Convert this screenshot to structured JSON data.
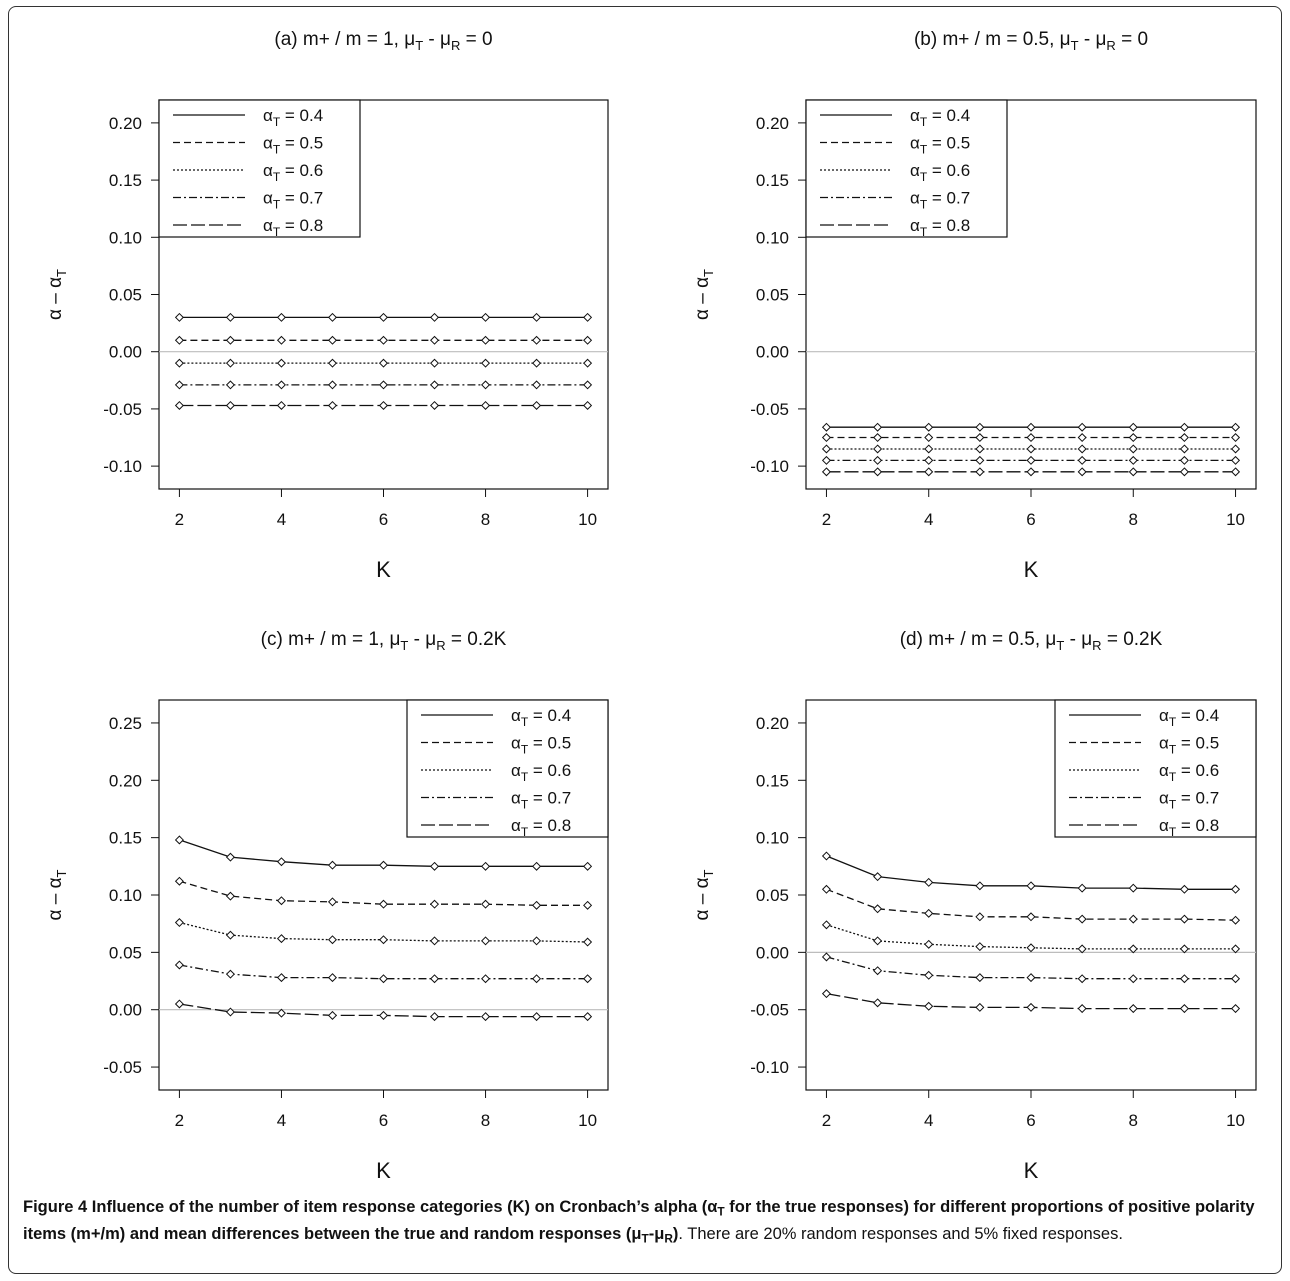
{
  "figure": {
    "caption": {
      "label": "Figure 4",
      "bold_a": "Influence of the number of item response categories (K) on Cronbach’s alpha (α",
      "bold_sub1": "T",
      "bold_b": " for the true responses) for different proportions of positive polarity items (m+/m) and mean differences between the true and random responses (μ",
      "bold_sub2": "T",
      "bold_c": "-μ",
      "bold_sub3": "R",
      "bold_d": ")",
      "rest": ". There are 20% random responses and 5% fixed responses."
    }
  },
  "chart_data": [
    {
      "id": "a",
      "type": "line",
      "title": {
        "main": "(a) m+ / m = 1, μ",
        "s1": "T",
        "mid": " - μ",
        "s2": "R",
        "tail": " = 0"
      },
      "xlabel": "K",
      "ylabel": {
        "main": "α – α",
        "sub": "T"
      },
      "x": [
        2,
        3,
        4,
        5,
        6,
        7,
        8,
        9,
        10
      ],
      "xlim": [
        1.6,
        10.4
      ],
      "ylim": [
        -0.12,
        0.22
      ],
      "xticks": [
        2,
        4,
        6,
        8,
        10
      ],
      "yticks": [
        -0.1,
        -0.05,
        0.0,
        0.05,
        0.1,
        0.15,
        0.2
      ],
      "ytick_labels": [
        "-0.10",
        "-0.05",
        "0.00",
        "0.05",
        "0.10",
        "0.15",
        "0.20"
      ],
      "reference_line": 0,
      "legend_position": "top-left",
      "series": [
        {
          "name": "α",
          "sub": "T",
          "value": " = 0.4",
          "dash": "",
          "values": [
            0.03,
            0.03,
            0.03,
            0.03,
            0.03,
            0.03,
            0.03,
            0.03,
            0.03
          ]
        },
        {
          "name": "α",
          "sub": "T",
          "value": " = 0.5",
          "dash": "7,4",
          "values": [
            0.01,
            0.01,
            0.01,
            0.01,
            0.01,
            0.01,
            0.01,
            0.01,
            0.01
          ]
        },
        {
          "name": "α",
          "sub": "T",
          "value": " = 0.6",
          "dash": "2,2",
          "values": [
            -0.01,
            -0.01,
            -0.01,
            -0.01,
            -0.01,
            -0.01,
            -0.01,
            -0.01,
            -0.01
          ]
        },
        {
          "name": "α",
          "sub": "T",
          "value": " = 0.7",
          "dash": "8,3,2,3",
          "values": [
            -0.029,
            -0.029,
            -0.029,
            -0.029,
            -0.029,
            -0.029,
            -0.029,
            -0.029,
            -0.029
          ]
        },
        {
          "name": "α",
          "sub": "T",
          "value": " = 0.8",
          "dash": "14,4",
          "values": [
            -0.047,
            -0.047,
            -0.047,
            -0.047,
            -0.047,
            -0.047,
            -0.047,
            -0.047,
            -0.047
          ]
        }
      ]
    },
    {
      "id": "b",
      "type": "line",
      "title": {
        "main": "(b) m+ / m = 0.5, μ",
        "s1": "T",
        "mid": " - μ",
        "s2": "R",
        "tail": " = 0"
      },
      "xlabel": "K",
      "ylabel": {
        "main": "α – α",
        "sub": "T"
      },
      "x": [
        2,
        3,
        4,
        5,
        6,
        7,
        8,
        9,
        10
      ],
      "xlim": [
        1.6,
        10.4
      ],
      "ylim": [
        -0.12,
        0.22
      ],
      "xticks": [
        2,
        4,
        6,
        8,
        10
      ],
      "yticks": [
        -0.1,
        -0.05,
        0.0,
        0.05,
        0.1,
        0.15,
        0.2
      ],
      "ytick_labels": [
        "-0.10",
        "-0.05",
        "0.00",
        "0.05",
        "0.10",
        "0.15",
        "0.20"
      ],
      "reference_line": 0,
      "legend_position": "top-left",
      "series": [
        {
          "name": "α",
          "sub": "T",
          "value": " = 0.4",
          "dash": "",
          "values": [
            -0.066,
            -0.066,
            -0.066,
            -0.066,
            -0.066,
            -0.066,
            -0.066,
            -0.066,
            -0.066
          ]
        },
        {
          "name": "α",
          "sub": "T",
          "value": " = 0.5",
          "dash": "7,4",
          "values": [
            -0.075,
            -0.075,
            -0.075,
            -0.075,
            -0.075,
            -0.075,
            -0.075,
            -0.075,
            -0.075
          ]
        },
        {
          "name": "α",
          "sub": "T",
          "value": " = 0.6",
          "dash": "2,2",
          "values": [
            -0.085,
            -0.085,
            -0.085,
            -0.085,
            -0.085,
            -0.085,
            -0.085,
            -0.085,
            -0.085
          ]
        },
        {
          "name": "α",
          "sub": "T",
          "value": " = 0.7",
          "dash": "8,3,2,3",
          "values": [
            -0.095,
            -0.095,
            -0.095,
            -0.095,
            -0.095,
            -0.095,
            -0.095,
            -0.095,
            -0.095
          ]
        },
        {
          "name": "α",
          "sub": "T",
          "value": " = 0.8",
          "dash": "14,4",
          "values": [
            -0.105,
            -0.105,
            -0.105,
            -0.105,
            -0.105,
            -0.105,
            -0.105,
            -0.105,
            -0.105
          ]
        }
      ]
    },
    {
      "id": "c",
      "type": "line",
      "title": {
        "main": "(c) m+ / m = 1, μ",
        "s1": "T",
        "mid": " - μ",
        "s2": "R",
        "tail": " = 0.2K"
      },
      "xlabel": "K",
      "ylabel": {
        "main": "α – α",
        "sub": "T"
      },
      "x": [
        2,
        3,
        4,
        5,
        6,
        7,
        8,
        9,
        10
      ],
      "xlim": [
        1.6,
        10.4
      ],
      "ylim": [
        -0.07,
        0.27
      ],
      "xticks": [
        2,
        4,
        6,
        8,
        10
      ],
      "yticks": [
        -0.05,
        0.0,
        0.05,
        0.1,
        0.15,
        0.2,
        0.25
      ],
      "ytick_labels": [
        "-0.05",
        "0.00",
        "0.05",
        "0.10",
        "0.15",
        "0.20",
        "0.25"
      ],
      "reference_line": 0,
      "legend_position": "top-right",
      "series": [
        {
          "name": "α",
          "sub": "T",
          "value": " = 0.4",
          "dash": "",
          "values": [
            0.148,
            0.133,
            0.129,
            0.126,
            0.126,
            0.125,
            0.125,
            0.125,
            0.125
          ]
        },
        {
          "name": "α",
          "sub": "T",
          "value": " = 0.5",
          "dash": "7,4",
          "values": [
            0.112,
            0.099,
            0.095,
            0.094,
            0.092,
            0.092,
            0.092,
            0.091,
            0.091
          ]
        },
        {
          "name": "α",
          "sub": "T",
          "value": " = 0.6",
          "dash": "2,2",
          "values": [
            0.076,
            0.065,
            0.062,
            0.061,
            0.061,
            0.06,
            0.06,
            0.06,
            0.059
          ]
        },
        {
          "name": "α",
          "sub": "T",
          "value": " = 0.7",
          "dash": "8,3,2,3",
          "values": [
            0.039,
            0.031,
            0.028,
            0.028,
            0.027,
            0.027,
            0.027,
            0.027,
            0.027
          ]
        },
        {
          "name": "α",
          "sub": "T",
          "value": " = 0.8",
          "dash": "14,4",
          "values": [
            0.005,
            -0.002,
            -0.003,
            -0.005,
            -0.005,
            -0.006,
            -0.006,
            -0.006,
            -0.006
          ]
        }
      ]
    },
    {
      "id": "d",
      "type": "line",
      "title": {
        "main": "(d) m+ / m = 0.5, μ",
        "s1": "T",
        "mid": " - μ",
        "s2": "R",
        "tail": " = 0.2K"
      },
      "xlabel": "K",
      "ylabel": {
        "main": "α – α",
        "sub": "T"
      },
      "x": [
        2,
        3,
        4,
        5,
        6,
        7,
        8,
        9,
        10
      ],
      "xlim": [
        1.6,
        10.4
      ],
      "ylim": [
        -0.12,
        0.22
      ],
      "xticks": [
        2,
        4,
        6,
        8,
        10
      ],
      "yticks": [
        -0.1,
        -0.05,
        0.0,
        0.05,
        0.1,
        0.15,
        0.2
      ],
      "ytick_labels": [
        "-0.10",
        "-0.05",
        "0.00",
        "0.05",
        "0.10",
        "0.15",
        "0.20"
      ],
      "reference_line": 0,
      "legend_position": "top-right",
      "series": [
        {
          "name": "α",
          "sub": "T",
          "value": " = 0.4",
          "dash": "",
          "values": [
            0.084,
            0.066,
            0.061,
            0.058,
            0.058,
            0.056,
            0.056,
            0.055,
            0.055
          ]
        },
        {
          "name": "α",
          "sub": "T",
          "value": " = 0.5",
          "dash": "7,4",
          "values": [
            0.055,
            0.038,
            0.034,
            0.031,
            0.031,
            0.029,
            0.029,
            0.029,
            0.028
          ]
        },
        {
          "name": "α",
          "sub": "T",
          "value": " = 0.6",
          "dash": "2,2",
          "values": [
            0.024,
            0.01,
            0.007,
            0.005,
            0.004,
            0.003,
            0.003,
            0.003,
            0.003
          ]
        },
        {
          "name": "α",
          "sub": "T",
          "value": " = 0.7",
          "dash": "8,3,2,3",
          "values": [
            -0.004,
            -0.016,
            -0.02,
            -0.022,
            -0.022,
            -0.023,
            -0.023,
            -0.023,
            -0.023
          ]
        },
        {
          "name": "α",
          "sub": "T",
          "value": " = 0.8",
          "dash": "14,4",
          "values": [
            -0.036,
            -0.044,
            -0.047,
            -0.048,
            -0.048,
            -0.049,
            -0.049,
            -0.049,
            -0.049
          ]
        }
      ]
    }
  ]
}
